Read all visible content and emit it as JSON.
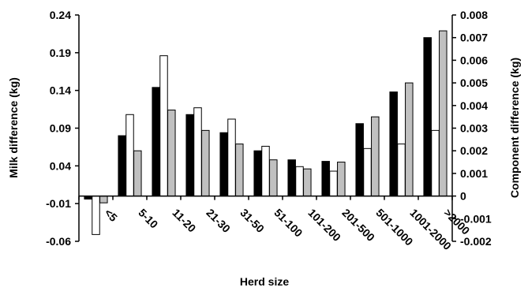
{
  "chart_data": {
    "type": "bar",
    "xlabel": "Herd size",
    "ylabel_left": "Milk difference (kg)",
    "ylabel_right": "Component difference (kg)",
    "categories": [
      "<5",
      "5-10",
      "11-20",
      "21-30",
      "31-50",
      "51-100",
      "101-200",
      "201-500",
      "501-1000",
      "1001-2000",
      ">2000"
    ],
    "left_axis": {
      "ylim": [
        -0.06,
        0.24
      ],
      "ticks": [
        -0.06,
        -0.01,
        0.04,
        0.09,
        0.14,
        0.19,
        0.24
      ],
      "tick_labels": [
        "-0.06",
        "-0.01",
        "0.04",
        "0.09",
        "0.14",
        "0.19",
        "0.24"
      ]
    },
    "right_axis": {
      "ylim": [
        -0.002,
        0.008
      ],
      "ticks": [
        -0.002,
        -0.001,
        0,
        0.001,
        0.002,
        0.003,
        0.004,
        0.005,
        0.006,
        0.007,
        0.008
      ],
      "tick_labels": [
        "-0.002",
        "-0.001",
        "0",
        "0.001",
        "0.002",
        "0.003",
        "0.004",
        "0.005",
        "0.006",
        "0.007",
        "0.008"
      ]
    },
    "series": [
      {
        "axis": "left",
        "fill": "#000000",
        "values": [
          -0.004,
          0.08,
          0.144,
          0.108,
          0.084,
          0.06,
          0.048,
          0.046,
          0.096,
          0.138,
          0.21
        ]
      },
      {
        "axis": "right",
        "fill": "#ffffff",
        "values": [
          -0.0017,
          0.0036,
          0.0062,
          0.0039,
          0.0034,
          0.0022,
          0.0013,
          0.0011,
          0.0021,
          0.0023,
          0.0029
        ]
      },
      {
        "axis": "right",
        "fill": "#c0c0c0",
        "values": [
          -0.0003,
          0.002,
          0.0038,
          0.0029,
          0.0023,
          0.0016,
          0.0012,
          0.0015,
          0.0035,
          0.005,
          0.0073
        ]
      }
    ],
    "grid": false,
    "legend": "none"
  }
}
